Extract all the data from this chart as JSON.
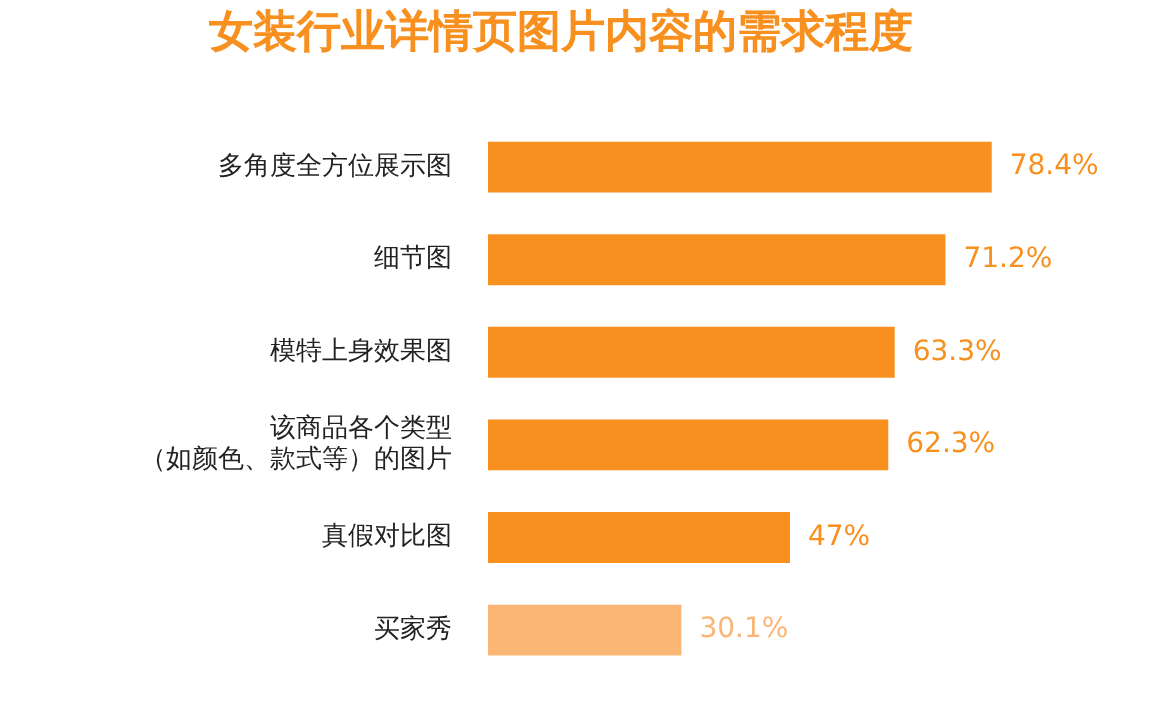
{
  "chart_data": {
    "type": "bar",
    "orientation": "horizontal",
    "title": "女装行业详情页图片内容的需求程度",
    "categories": [
      "多角度全方位展示图",
      "细节图",
      "模特上身效果图",
      "该商品各个类型（如颜色、款式等）的图片",
      "真假对比图",
      "买家秀"
    ],
    "values": [
      78.4,
      71.2,
      63.3,
      62.3,
      47,
      30.1
    ],
    "value_labels": [
      "78.4%",
      "71.2%",
      "63.3%",
      "62.3%",
      "47%",
      "30.1%"
    ],
    "colors": [
      "#f7901e",
      "#f7901e",
      "#f7901e",
      "#f7901e",
      "#f7901e",
      "#fbb675"
    ],
    "tick_labels": "y",
    "legend": false
  }
}
